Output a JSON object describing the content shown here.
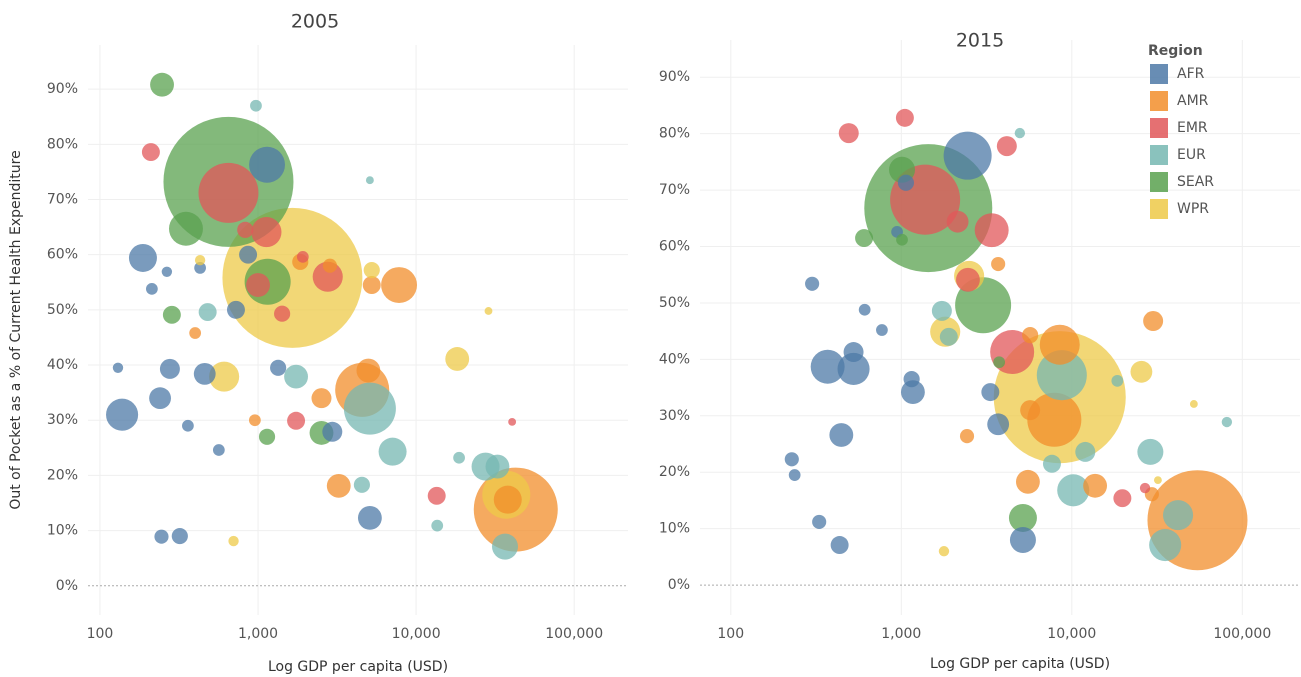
{
  "chart_data": [
    {
      "type": "bubble",
      "title": "2005",
      "xlabel": "Log GDP per capita (USD)",
      "ylabel": "Out of Pocket as a % of Current Health Expenditure",
      "xscale": "log",
      "xlim": [
        84,
        219000
      ],
      "ylim": [
        -5.3,
        98
      ],
      "grid": true,
      "xticks": [
        100,
        {
          "value": 1000,
          "label": "1,000"
        },
        {
          "value": 10000,
          "label": "10,000"
        },
        {
          "value": 100000,
          "label": "100,000"
        }
      ],
      "yticks": [
        {
          "value": 0,
          "label": "0%"
        },
        {
          "value": 10,
          "label": "10%"
        },
        {
          "value": 20,
          "label": "20%"
        },
        {
          "value": 30,
          "label": "30%"
        },
        {
          "value": 40,
          "label": "40%"
        },
        {
          "value": 50,
          "label": "50%"
        },
        {
          "value": 60,
          "label": "60%"
        },
        {
          "value": 70,
          "label": "70%"
        },
        {
          "value": 80,
          "label": "80%"
        },
        {
          "value": 90,
          "label": "90%"
        }
      ],
      "series": [
        {
          "name": "AFR",
          "color": "#4e79a7",
          "x": [
            138,
            187,
            240,
            277,
            320,
            245,
            1140,
            865,
            725,
            460,
            5100,
            2950,
            1340,
            360,
            213,
            130,
            565,
            430,
            265
          ],
          "values": [
            31,
            59.4,
            34,
            39.3,
            9,
            8.9,
            76.3,
            60,
            50,
            38.4,
            12.3,
            27.9,
            39.5,
            29,
            53.8,
            39.5,
            24.6,
            57.6,
            56.9
          ],
          "sizes": [
            67,
            51,
            31,
            26,
            17,
            13,
            84,
            21,
            21,
            31,
            37,
            26,
            17,
            9,
            9,
            7,
            9,
            9,
            7
          ]
        },
        {
          "name": "AMR",
          "color": "#f28e2b",
          "x": [
            42700,
            7800,
            4560,
            4990,
            3240,
            2520,
            5240,
            1850,
            2850,
            955,
            400,
            38000
          ],
          "values": [
            13.8,
            54.5,
            35.5,
            39,
            18.1,
            34,
            54.5,
            58.7,
            58,
            30,
            45.8,
            15.6
          ],
          "sizes": [
            459,
            84,
            190,
            37,
            37,
            26,
            21,
            17,
            13,
            9,
            9,
            51
          ]
        },
        {
          "name": "EMR",
          "color": "#e15759",
          "x": [
            650,
            1130,
            2760,
            1000,
            210,
            13500,
            1420,
            1740,
            830,
            1920,
            40500
          ],
          "values": [
            71.2,
            64.1,
            56,
            54.5,
            78.6,
            16.3,
            49.3,
            29.9,
            64.5,
            59.6,
            29.7
          ],
          "sizes": [
            234,
            59,
            59,
            37,
            21,
            21,
            17,
            21,
            17,
            9,
            4
          ]
        },
        {
          "name": "EUR",
          "color": "#76b7b2",
          "x": [
            5100,
            7100,
            1740,
            36500,
            27500,
            32700,
            480,
            4540,
            13600,
            18700,
            970,
            5100
          ],
          "values": [
            32.1,
            24.3,
            37.9,
            7.1,
            21.6,
            21.6,
            49.6,
            18.3,
            10.9,
            23.2,
            87,
            73.5
          ],
          "sizes": [
            176,
            51,
            37,
            44,
            51,
            37,
            21,
            17,
            9,
            9,
            9,
            4
          ]
        },
        {
          "name": "SEAR",
          "color": "#59a14f",
          "x": [
            650,
            247,
            350,
            1150,
            2520,
            1140,
            285
          ],
          "values": [
            73.2,
            90.8,
            64.7,
            55.1,
            27.7,
            27,
            49.1
          ],
          "sizes": [
            1100,
            37,
            75,
            138,
            37,
            17,
            21
          ]
        },
        {
          "name": "WPR",
          "color": "#edc948",
          "x": [
            1650,
            610,
            18200,
            37200,
            5240,
            700,
            430,
            28700
          ],
          "values": [
            55.8,
            37.9,
            41.1,
            16.5,
            57.2,
            8.1,
            59,
            49.8
          ],
          "sizes": [
            1275,
            59,
            37,
            150,
            17,
            7,
            7,
            4
          ]
        }
      ]
    },
    {
      "type": "bubble",
      "title": "2015",
      "xlabel": "Log GDP per capita (USD)",
      "xscale": "log",
      "xlim": [
        66,
        218000
      ],
      "ylim": [
        -5.3,
        96.6
      ],
      "grid": true,
      "legend": "top-right",
      "legend_title": "Region",
      "xticks": [
        100,
        {
          "value": 1000,
          "label": "1,000"
        },
        {
          "value": 10000,
          "label": "10,000"
        },
        {
          "value": 100000,
          "label": "100,000"
        }
      ],
      "yticks": [
        {
          "value": 0,
          "label": "0%"
        },
        {
          "value": 10,
          "label": "10%"
        },
        {
          "value": 20,
          "label": "20%"
        },
        {
          "value": 30,
          "label": "30%"
        },
        {
          "value": 40,
          "label": "40%"
        },
        {
          "value": 50,
          "label": "50%"
        },
        {
          "value": 60,
          "label": "60%"
        },
        {
          "value": 70,
          "label": "70%"
        },
        {
          "value": 80,
          "label": "80%"
        },
        {
          "value": 90,
          "label": "90%"
        }
      ],
      "series": [
        {
          "name": "AFR",
          "color": "#4e79a7",
          "x": [
            2450,
            370,
            525,
            525,
            445,
            1170,
            3700,
            5170,
            3330,
            1150,
            1065,
            300,
            330,
            435,
            228,
            945,
            770,
            610,
            237
          ],
          "values": [
            76.1,
            38.7,
            38.3,
            41.3,
            26.6,
            34.2,
            28.5,
            8,
            34.2,
            36.5,
            71.3,
            53.4,
            11.2,
            7.1,
            22.3,
            62.6,
            45.2,
            48.8,
            19.5
          ],
          "sizes": [
            150,
            75,
            67,
            26,
            37,
            37,
            31,
            44,
            21,
            17,
            17,
            13,
            13,
            21,
            13,
            9,
            9,
            9,
            9
          ]
        },
        {
          "name": "AMR",
          "color": "#f28e2b",
          "x": [
            54600,
            7900,
            8500,
            5530,
            13700,
            30000,
            5700,
            5700,
            2430,
            29500,
            3700
          ],
          "values": [
            11.5,
            29.3,
            42.6,
            18.3,
            17.6,
            46.8,
            31,
            44.3,
            26.4,
            16.1,
            56.9
          ],
          "sizes": [
            651,
            190,
            104,
            37,
            37,
            26,
            26,
            17,
            13,
            13,
            13
          ]
        },
        {
          "name": "EMR",
          "color": "#e15759",
          "x": [
            1380,
            4470,
            3390,
            4160,
            492,
            1050,
            2140,
            2460,
            19800,
            26900
          ],
          "values": [
            68.3,
            41.3,
            62.9,
            77.8,
            80.1,
            82.8,
            64.4,
            54.1,
            15.4,
            17.2
          ],
          "sizes": [
            319,
            126,
            75,
            26,
            26,
            21,
            31,
            37,
            21,
            7
          ]
        },
        {
          "name": "EUR",
          "color": "#76b7b2",
          "x": [
            8740,
            10200,
            35300,
            28900,
            42000,
            12000,
            7650,
            1730,
            1900,
            81200,
            18500,
            4960
          ],
          "values": [
            37.2,
            16.8,
            7.1,
            23.6,
            12.4,
            23.6,
            21.5,
            48.6,
            44,
            28.9,
            36.2,
            80.1
          ],
          "sizes": [
            163,
            67,
            67,
            44,
            59,
            26,
            21,
            26,
            21,
            7,
            9,
            7
          ]
        },
        {
          "name": "SEAR",
          "color": "#59a14f",
          "x": [
            1440,
            3020,
            5170,
            1010,
            605,
            1010,
            3750
          ],
          "values": [
            66.8,
            49.6,
            11.9,
            73.6,
            61.5,
            61.2,
            39.5
          ],
          "sizes": [
            1066,
            204,
            51,
            44,
            21,
            9,
            9
          ]
        },
        {
          "name": "WPR",
          "color": "#edc948",
          "x": [
            8500,
            2500,
            1810,
            25600,
            52000,
            1780,
            32000
          ],
          "values": [
            33.3,
            54.8,
            44.9,
            37.8,
            32.1,
            6,
            18.6
          ],
          "sizes": [
            1134,
            59,
            59,
            31,
            4,
            7,
            4
          ]
        }
      ]
    }
  ]
}
